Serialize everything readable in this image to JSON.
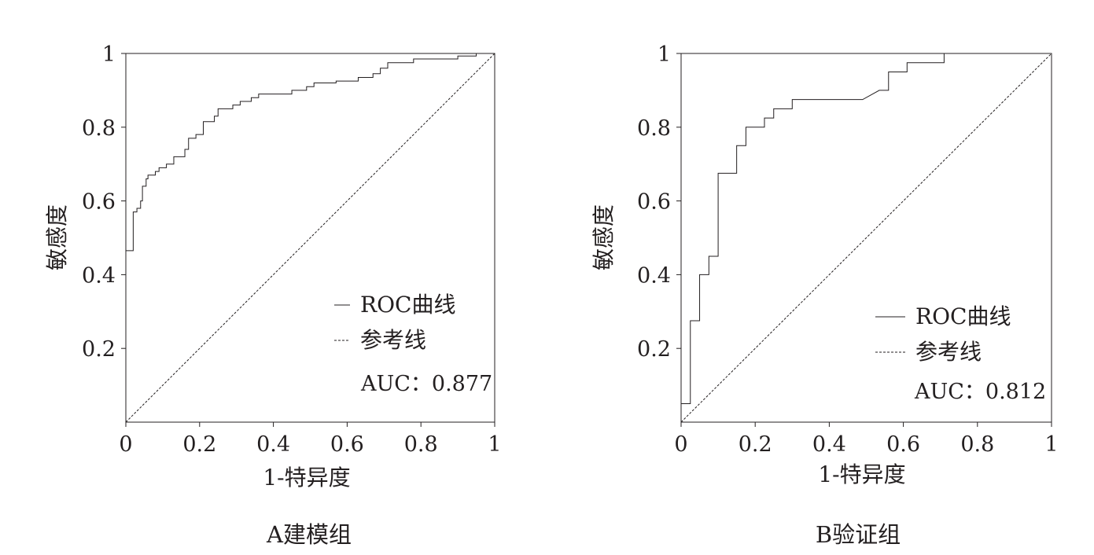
{
  "chart_data": [
    {
      "type": "line",
      "caption": "A建模组",
      "xlabel": "1-特异度",
      "ylabel": "敏感度",
      "xlim": [
        0,
        1
      ],
      "ylim": [
        0,
        1
      ],
      "x_ticks": [
        "0",
        "0.2",
        "0.4",
        "0.6",
        "0.8",
        "1"
      ],
      "y_ticks": [
        "0.2",
        "0.4",
        "0.6",
        "0.8",
        "1"
      ],
      "grid": false,
      "legend_position": "bottom-right",
      "series": [
        {
          "name": "ROC曲线",
          "style": "solid",
          "points": [
            [
              0,
              0
            ],
            [
              0,
              0.465
            ],
            [
              0.02,
              0.465
            ],
            [
              0.02,
              0.57
            ],
            [
              0.03,
              0.57
            ],
            [
              0.03,
              0.58
            ],
            [
              0.04,
              0.58
            ],
            [
              0.04,
              0.6
            ],
            [
              0.045,
              0.6
            ],
            [
              0.045,
              0.64
            ],
            [
              0.055,
              0.64
            ],
            [
              0.055,
              0.66
            ],
            [
              0.06,
              0.66
            ],
            [
              0.06,
              0.67
            ],
            [
              0.08,
              0.67
            ],
            [
              0.08,
              0.68
            ],
            [
              0.09,
              0.68
            ],
            [
              0.09,
              0.69
            ],
            [
              0.11,
              0.69
            ],
            [
              0.11,
              0.7
            ],
            [
              0.13,
              0.7
            ],
            [
              0.13,
              0.72
            ],
            [
              0.16,
              0.72
            ],
            [
              0.16,
              0.74
            ],
            [
              0.17,
              0.74
            ],
            [
              0.17,
              0.77
            ],
            [
              0.19,
              0.77
            ],
            [
              0.19,
              0.78
            ],
            [
              0.21,
              0.78
            ],
            [
              0.21,
              0.815
            ],
            [
              0.24,
              0.815
            ],
            [
              0.24,
              0.83
            ],
            [
              0.25,
              0.83
            ],
            [
              0.25,
              0.85
            ],
            [
              0.29,
              0.85
            ],
            [
              0.29,
              0.86
            ],
            [
              0.31,
              0.86
            ],
            [
              0.31,
              0.87
            ],
            [
              0.34,
              0.87
            ],
            [
              0.34,
              0.88
            ],
            [
              0.36,
              0.88
            ],
            [
              0.36,
              0.89
            ],
            [
              0.45,
              0.89
            ],
            [
              0.45,
              0.9
            ],
            [
              0.49,
              0.9
            ],
            [
              0.49,
              0.91
            ],
            [
              0.51,
              0.91
            ],
            [
              0.51,
              0.92
            ],
            [
              0.57,
              0.92
            ],
            [
              0.57,
              0.925
            ],
            [
              0.63,
              0.925
            ],
            [
              0.63,
              0.935
            ],
            [
              0.67,
              0.935
            ],
            [
              0.67,
              0.945
            ],
            [
              0.69,
              0.945
            ],
            [
              0.69,
              0.96
            ],
            [
              0.71,
              0.96
            ],
            [
              0.71,
              0.975
            ],
            [
              0.78,
              0.975
            ],
            [
              0.78,
              0.985
            ],
            [
              0.9,
              0.985
            ],
            [
              0.9,
              0.993
            ],
            [
              0.95,
              0.993
            ],
            [
              0.95,
              1
            ],
            [
              1,
              1
            ]
          ]
        },
        {
          "name": "参考线",
          "style": "dashed",
          "points": [
            [
              0,
              0
            ],
            [
              1,
              1
            ]
          ]
        }
      ],
      "annotation": "AUC：0.877"
    },
    {
      "type": "line",
      "caption": "B验证组",
      "xlabel": "1-特异度",
      "ylabel": "敏感度",
      "xlim": [
        0,
        1
      ],
      "ylim": [
        0,
        1
      ],
      "x_ticks": [
        "0",
        "0.2",
        "0.4",
        "0.6",
        "0.8",
        "1"
      ],
      "y_ticks": [
        "0.2",
        "0.4",
        "0.6",
        "0.8",
        "1"
      ],
      "grid": false,
      "legend_position": "bottom-right",
      "series": [
        {
          "name": "ROC曲线",
          "style": "solid",
          "points": [
            [
              0,
              0
            ],
            [
              0,
              0.05
            ],
            [
              0.025,
              0.05
            ],
            [
              0.025,
              0.275
            ],
            [
              0.05,
              0.275
            ],
            [
              0.05,
              0.4
            ],
            [
              0.075,
              0.4
            ],
            [
              0.075,
              0.45
            ],
            [
              0.1,
              0.45
            ],
            [
              0.1,
              0.675
            ],
            [
              0.15,
              0.675
            ],
            [
              0.15,
              0.75
            ],
            [
              0.175,
              0.75
            ],
            [
              0.175,
              0.8
            ],
            [
              0.225,
              0.8
            ],
            [
              0.225,
              0.825
            ],
            [
              0.25,
              0.825
            ],
            [
              0.25,
              0.85
            ],
            [
              0.3,
              0.85
            ],
            [
              0.3,
              0.875
            ],
            [
              0.49,
              0.875
            ],
            [
              0.535,
              0.9
            ],
            [
              0.56,
              0.9
            ],
            [
              0.56,
              0.95
            ],
            [
              0.61,
              0.95
            ],
            [
              0.61,
              0.975
            ],
            [
              0.71,
              0.975
            ],
            [
              0.71,
              1
            ],
            [
              1,
              1
            ]
          ]
        },
        {
          "name": "参考线",
          "style": "dashed",
          "points": [
            [
              0,
              0
            ],
            [
              1,
              1
            ]
          ]
        }
      ],
      "annotation": "AUC：0.812"
    }
  ]
}
